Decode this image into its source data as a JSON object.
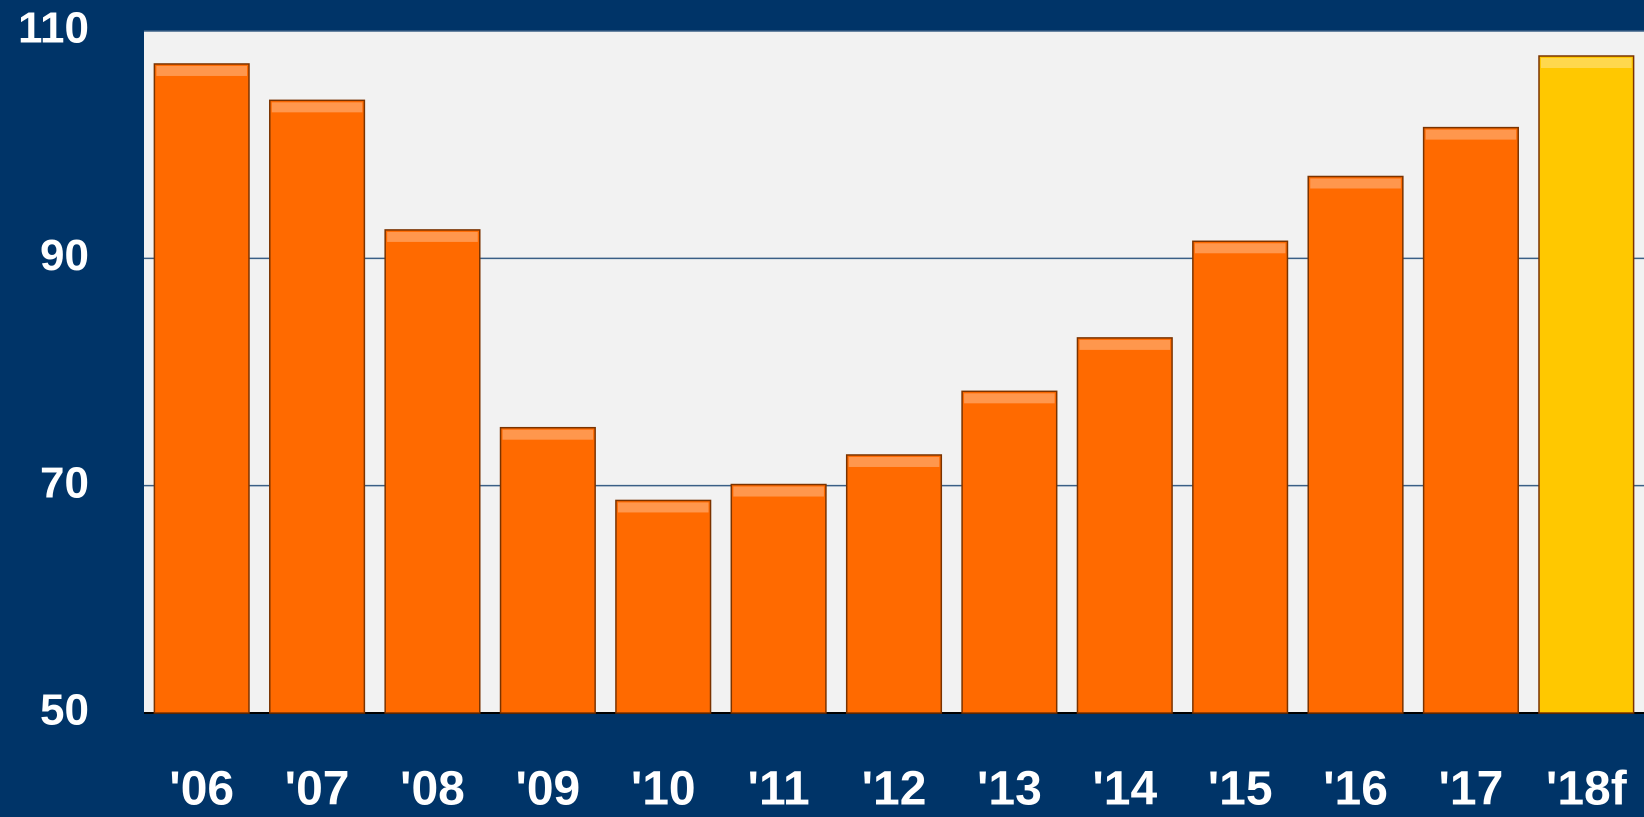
{
  "chart_data": {
    "type": "bar",
    "categories": [
      "'06",
      "'07",
      "'08",
      "'09",
      "'10",
      "'11",
      "'12",
      "'13",
      "'14",
      "'15",
      "'16",
      "'17",
      "'18f"
    ],
    "values": [
      107.1,
      103.9,
      92.5,
      75.1,
      68.7,
      70.1,
      72.7,
      78.3,
      83.0,
      91.5,
      97.2,
      101.5,
      107.8
    ],
    "colors": [
      "#ff6a00",
      "#ff6a00",
      "#ff6a00",
      "#ff6a00",
      "#ff6a00",
      "#ff6a00",
      "#ff6a00",
      "#ff6a00",
      "#ff6a00",
      "#ff6a00",
      "#ff6a00",
      "#ff6a00",
      "#ffc800"
    ],
    "ylim": [
      50,
      110
    ],
    "yticks": [
      50,
      70,
      90,
      110
    ],
    "grid": true
  }
}
